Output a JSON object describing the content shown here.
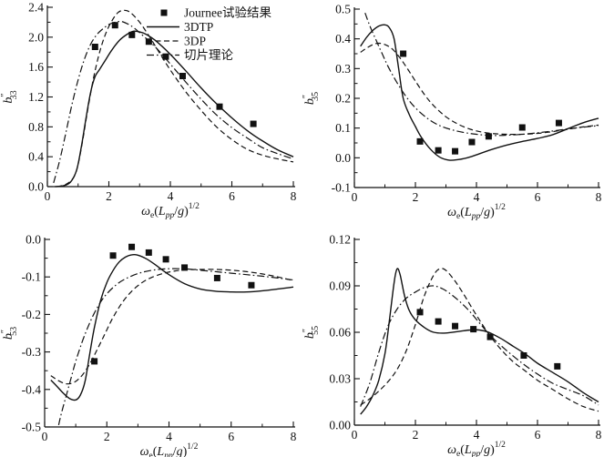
{
  "figure": {
    "background": "#ffffff",
    "ink_color": "#111111",
    "xlabel_plain": "ωe(Lpp/g)1/2",
    "xlabel_parts": [
      {
        "t": "ω",
        "style": "italic"
      },
      {
        "t": "e",
        "style": "sub"
      },
      {
        "t": "(",
        "style": "normal"
      },
      {
        "t": "L",
        "style": "italic"
      },
      {
        "t": "pp",
        "style": "subitalic"
      },
      {
        "t": "/",
        "style": "normal"
      },
      {
        "t": "g",
        "style": "italic"
      },
      {
        "t": ")",
        "style": "normal"
      },
      {
        "t": "1/2",
        "style": "sup"
      }
    ]
  },
  "legend": {
    "position": "top-right-of-first-plot",
    "items": [
      {
        "label": "Journee试验结果",
        "symbol": "filled-square"
      },
      {
        "label": "3DTP",
        "symbol": "solid-line"
      },
      {
        "label": "3DP",
        "symbol": "dashed-line"
      },
      {
        "label": "切片理论",
        "symbol": "dashdot-line"
      }
    ]
  },
  "chart_data": [
    {
      "type": "line",
      "title": "",
      "xlabel": "ωe(Lpp/g)1/2",
      "ylabel": "b″33",
      "ylabel_parts": {
        "base": "b",
        "prime": "″",
        "sub": "33"
      },
      "xlim": [
        0,
        8
      ],
      "ylim": [
        0.0,
        2.4
      ],
      "xticks": [
        0,
        2,
        4,
        6,
        8
      ],
      "xtick_labels": [
        "0",
        "2",
        "4",
        "6",
        "8"
      ],
      "yticks": [
        0.0,
        0.4,
        0.8,
        1.2,
        1.6,
        2.0,
        2.4
      ],
      "ytick_labels": [
        "0.0",
        "0.4",
        "0.8",
        "1.2",
        "1.6",
        "2.0",
        "2.4"
      ],
      "grid": false,
      "series": [
        {
          "name": "3DTP",
          "style": "solid",
          "x": [
            0.25,
            0.5,
            0.75,
            0.95,
            1.1,
            1.25,
            1.4,
            1.55,
            1.7,
            1.9,
            2.1,
            2.35,
            2.6,
            2.8,
            3.0,
            3.2,
            3.5,
            4.0,
            4.5,
            5.0,
            5.5,
            6.0,
            6.5,
            7.0,
            7.5,
            8.0
          ],
          "y": [
            0.0,
            0.01,
            0.06,
            0.22,
            0.52,
            0.9,
            1.25,
            1.47,
            1.57,
            1.7,
            1.83,
            1.96,
            2.04,
            2.08,
            2.07,
            2.04,
            1.96,
            1.77,
            1.55,
            1.32,
            1.11,
            0.92,
            0.75,
            0.61,
            0.49,
            0.4
          ]
        },
        {
          "name": "3DP",
          "style": "dashed",
          "x": [
            0.3,
            0.6,
            0.85,
            1.0,
            1.15,
            1.3,
            1.5,
            1.7,
            1.9,
            2.1,
            2.3,
            2.5,
            2.7,
            3.0,
            3.3,
            3.6,
            4.0,
            4.5,
            5.0,
            5.5,
            6.0,
            6.5,
            7.0,
            7.5,
            8.0
          ],
          "y": [
            0.0,
            0.03,
            0.12,
            0.3,
            0.62,
            1.0,
            1.45,
            1.8,
            2.05,
            2.22,
            2.33,
            2.36,
            2.33,
            2.2,
            2.02,
            1.82,
            1.56,
            1.27,
            1.02,
            0.8,
            0.63,
            0.5,
            0.42,
            0.37,
            0.33
          ]
        },
        {
          "name": "切片理论",
          "style": "dashdot",
          "x": [
            0.2,
            0.4,
            0.6,
            0.8,
            1.0,
            1.2,
            1.4,
            1.6,
            1.8,
            2.0,
            2.2,
            2.4,
            2.6,
            2.8,
            3.0,
            3.3,
            3.6,
            4.0,
            4.5,
            5.0,
            5.5,
            6.0,
            6.5,
            7.0,
            7.5,
            8.0
          ],
          "y": [
            0.05,
            0.35,
            0.72,
            1.1,
            1.43,
            1.7,
            1.9,
            2.03,
            2.11,
            2.17,
            2.2,
            2.21,
            2.18,
            2.13,
            2.06,
            1.95,
            1.83,
            1.64,
            1.4,
            1.17,
            0.96,
            0.79,
            0.65,
            0.52,
            0.44,
            0.37
          ]
        },
        {
          "name": "Journee试验结果",
          "style": "squares",
          "x": [
            1.55,
            2.2,
            2.75,
            3.3,
            3.85,
            4.4,
            5.6,
            6.7
          ],
          "y": [
            1.87,
            2.16,
            2.03,
            1.94,
            1.74,
            1.48,
            1.07,
            0.84
          ]
        }
      ]
    },
    {
      "type": "line",
      "title": "",
      "xlabel": "ωe(Lpp/g)1/2",
      "ylabel": "b″35",
      "ylabel_parts": {
        "base": "b",
        "prime": "″",
        "sub": "35"
      },
      "xlim": [
        0,
        8
      ],
      "ylim": [
        -0.1,
        0.5
      ],
      "xticks": [
        0,
        2,
        4,
        6,
        8
      ],
      "xtick_labels": [
        "0",
        "2",
        "4",
        "6",
        "8"
      ],
      "yticks": [
        -0.1,
        0.0,
        0.1,
        0.2,
        0.3,
        0.4,
        0.5
      ],
      "ytick_labels": [
        "-0.1",
        "0.0",
        "0.1",
        "0.2",
        "0.3",
        "0.4",
        "0.5"
      ],
      "grid": false,
      "series": [
        {
          "name": "3DTP",
          "style": "solid",
          "x": [
            0.2,
            0.4,
            0.6,
            0.8,
            1.0,
            1.15,
            1.3,
            1.45,
            1.6,
            1.8,
            2.0,
            2.2,
            2.5,
            2.8,
            3.1,
            3.4,
            3.7,
            4.0,
            4.5,
            5.0,
            5.5,
            6.0,
            6.5,
            7.0,
            7.5,
            8.0
          ],
          "y": [
            0.375,
            0.405,
            0.428,
            0.443,
            0.447,
            0.437,
            0.4,
            0.3,
            0.2,
            0.145,
            0.105,
            0.068,
            0.028,
            0.002,
            -0.008,
            -0.006,
            0.0,
            0.01,
            0.028,
            0.043,
            0.055,
            0.065,
            0.078,
            0.098,
            0.118,
            0.133
          ]
        },
        {
          "name": "3DP",
          "style": "dashed",
          "x": [
            0.2,
            0.5,
            0.75,
            1.0,
            1.25,
            1.5,
            1.75,
            2.0,
            2.3,
            2.6,
            3.0,
            3.4,
            3.8,
            4.2,
            4.6,
            5.0,
            5.5,
            6.0,
            6.5,
            7.0,
            7.5,
            8.0
          ],
          "y": [
            0.355,
            0.375,
            0.385,
            0.381,
            0.365,
            0.335,
            0.298,
            0.258,
            0.212,
            0.175,
            0.138,
            0.113,
            0.096,
            0.086,
            0.081,
            0.079,
            0.079,
            0.082,
            0.088,
            0.096,
            0.104,
            0.11
          ]
        },
        {
          "name": "切片理论",
          "style": "dashdot",
          "x": [
            0.35,
            0.5,
            0.7,
            0.9,
            1.1,
            1.4,
            1.7,
            2.0,
            2.4,
            2.8,
            3.2,
            3.6,
            4.0,
            4.5,
            5.0,
            5.5,
            6.0,
            6.5,
            7.0,
            7.5,
            8.0
          ],
          "y": [
            0.487,
            0.445,
            0.398,
            0.352,
            0.308,
            0.252,
            0.205,
            0.168,
            0.132,
            0.108,
            0.094,
            0.085,
            0.079,
            0.075,
            0.076,
            0.079,
            0.084,
            0.09,
            0.097,
            0.103,
            0.108
          ]
        },
        {
          "name": "Journee试验结果",
          "style": "squares",
          "x": [
            1.6,
            2.15,
            2.75,
            3.3,
            3.85,
            4.4,
            5.5,
            6.7
          ],
          "y": [
            0.35,
            0.055,
            0.025,
            0.022,
            0.053,
            0.072,
            0.102,
            0.117
          ]
        }
      ]
    },
    {
      "type": "line",
      "title": "",
      "xlabel": "ωe(Lpp/g)1/2",
      "ylabel": "b″53",
      "ylabel_parts": {
        "base": "b",
        "prime": "″",
        "sub": "53"
      },
      "xlim": [
        0,
        8
      ],
      "ylim": [
        -0.5,
        0.0
      ],
      "xticks": [
        0,
        2,
        4,
        6,
        8
      ],
      "xtick_labels": [
        "0",
        "2",
        "4",
        "6",
        "8"
      ],
      "yticks": [
        -0.5,
        -0.4,
        -0.3,
        -0.2,
        -0.1,
        0.0
      ],
      "ytick_labels": [
        "-0.5",
        "-0.4",
        "-0.3",
        "-0.2",
        "-0.1",
        "0.0"
      ],
      "grid": false,
      "series": [
        {
          "name": "3DTP",
          "style": "solid",
          "x": [
            0.2,
            0.4,
            0.6,
            0.8,
            1.0,
            1.15,
            1.3,
            1.45,
            1.6,
            1.8,
            2.0,
            2.2,
            2.4,
            2.6,
            2.8,
            3.0,
            3.3,
            3.6,
            4.0,
            4.5,
            5.0,
            5.5,
            6.0,
            6.5,
            7.0,
            7.5,
            8.0
          ],
          "y": [
            -0.375,
            -0.392,
            -0.41,
            -0.424,
            -0.428,
            -0.415,
            -0.378,
            -0.305,
            -0.235,
            -0.163,
            -0.115,
            -0.083,
            -0.06,
            -0.047,
            -0.041,
            -0.042,
            -0.053,
            -0.07,
            -0.094,
            -0.118,
            -0.132,
            -0.138,
            -0.14,
            -0.14,
            -0.137,
            -0.132,
            -0.127
          ]
        },
        {
          "name": "3DP",
          "style": "dashed",
          "x": [
            0.2,
            0.45,
            0.7,
            0.95,
            1.2,
            1.45,
            1.7,
            1.95,
            2.2,
            2.5,
            2.8,
            3.1,
            3.4,
            3.8,
            4.2,
            4.6,
            5.0,
            5.5,
            6.0,
            6.5,
            7.0,
            7.5,
            8.0
          ],
          "y": [
            -0.363,
            -0.377,
            -0.385,
            -0.381,
            -0.363,
            -0.332,
            -0.292,
            -0.25,
            -0.208,
            -0.168,
            -0.138,
            -0.117,
            -0.103,
            -0.091,
            -0.084,
            -0.081,
            -0.08,
            -0.08,
            -0.082,
            -0.086,
            -0.092,
            -0.1,
            -0.11
          ]
        },
        {
          "name": "切片理论",
          "style": "dashdot",
          "x": [
            0.45,
            0.55,
            0.7,
            0.85,
            1.0,
            1.2,
            1.4,
            1.6,
            1.8,
            2.0,
            2.3,
            2.6,
            3.0,
            3.4,
            3.8,
            4.2,
            4.6,
            5.0,
            5.5,
            6.0,
            6.5,
            7.0,
            7.5,
            8.0
          ],
          "y": [
            -0.495,
            -0.46,
            -0.415,
            -0.37,
            -0.325,
            -0.275,
            -0.232,
            -0.196,
            -0.167,
            -0.145,
            -0.121,
            -0.105,
            -0.091,
            -0.083,
            -0.079,
            -0.078,
            -0.079,
            -0.082,
            -0.086,
            -0.09,
            -0.094,
            -0.098,
            -0.103,
            -0.108
          ]
        },
        {
          "name": "Journee试验结果",
          "style": "squares",
          "x": [
            1.6,
            2.2,
            2.8,
            3.35,
            3.9,
            4.5,
            5.55,
            6.65
          ],
          "y": [
            -0.325,
            -0.043,
            -0.02,
            -0.035,
            -0.053,
            -0.075,
            -0.103,
            -0.122
          ]
        }
      ]
    },
    {
      "type": "line",
      "title": "",
      "xlabel": "ωe(Lpp/g)1/2",
      "ylabel": "b″55",
      "ylabel_parts": {
        "base": "b",
        "prime": "″",
        "sub": "55"
      },
      "xlim": [
        0,
        8
      ],
      "ylim": [
        0.0,
        0.12
      ],
      "xticks": [
        0,
        2,
        4,
        6,
        8
      ],
      "xtick_labels": [
        "0",
        "2",
        "4",
        "6",
        "8"
      ],
      "yticks": [
        0.0,
        0.03,
        0.06,
        0.09,
        0.12
      ],
      "ytick_labels": [
        "0.00",
        "0.03",
        "0.06",
        "0.09",
        "0.12"
      ],
      "grid": false,
      "series": [
        {
          "name": "3DTP",
          "style": "solid",
          "x": [
            0.2,
            0.4,
            0.6,
            0.8,
            1.0,
            1.15,
            1.3,
            1.4,
            1.5,
            1.65,
            1.8,
            2.0,
            2.3,
            2.6,
            3.0,
            3.4,
            3.8,
            4.1,
            4.4,
            4.8,
            5.2,
            5.6,
            6.0,
            6.5,
            7.0,
            7.5,
            8.0
          ],
          "y": [
            0.007,
            0.012,
            0.019,
            0.029,
            0.046,
            0.068,
            0.092,
            0.101,
            0.097,
            0.083,
            0.074,
            0.068,
            0.063,
            0.06,
            0.0595,
            0.0605,
            0.0615,
            0.0615,
            0.06,
            0.056,
            0.051,
            0.046,
            0.04,
            0.034,
            0.028,
            0.021,
            0.015
          ]
        },
        {
          "name": "3DP",
          "style": "dashed",
          "x": [
            0.2,
            0.5,
            0.8,
            1.1,
            1.4,
            1.7,
            2.0,
            2.3,
            2.6,
            2.8,
            3.0,
            3.3,
            3.6,
            4.0,
            4.4,
            4.8,
            5.2,
            5.6,
            6.0,
            6.5,
            7.0,
            7.5,
            8.0
          ],
          "y": [
            0.013,
            0.017,
            0.022,
            0.028,
            0.036,
            0.048,
            0.065,
            0.084,
            0.097,
            0.101,
            0.1,
            0.093,
            0.084,
            0.071,
            0.059,
            0.049,
            0.041,
            0.035,
            0.029,
            0.023,
            0.017,
            0.012,
            0.009
          ]
        },
        {
          "name": "切片理论",
          "style": "dashdot",
          "x": [
            0.2,
            0.5,
            0.8,
            1.1,
            1.4,
            1.7,
            2.0,
            2.3,
            2.6,
            2.9,
            3.2,
            3.5,
            3.8,
            4.1,
            4.5,
            5.0,
            5.5,
            6.0,
            6.5,
            7.0,
            7.5,
            8.0
          ],
          "y": [
            0.012,
            0.027,
            0.047,
            0.064,
            0.075,
            0.082,
            0.086,
            0.089,
            0.09,
            0.088,
            0.084,
            0.079,
            0.073,
            0.066,
            0.057,
            0.048,
            0.04,
            0.033,
            0.027,
            0.023,
            0.019,
            0.013
          ]
        },
        {
          "name": "Journee试验结果",
          "style": "squares",
          "x": [
            2.15,
            2.75,
            3.3,
            3.9,
            4.45,
            5.55,
            6.65
          ],
          "y": [
            0.073,
            0.067,
            0.064,
            0.062,
            0.057,
            0.045,
            0.038
          ]
        }
      ]
    }
  ]
}
